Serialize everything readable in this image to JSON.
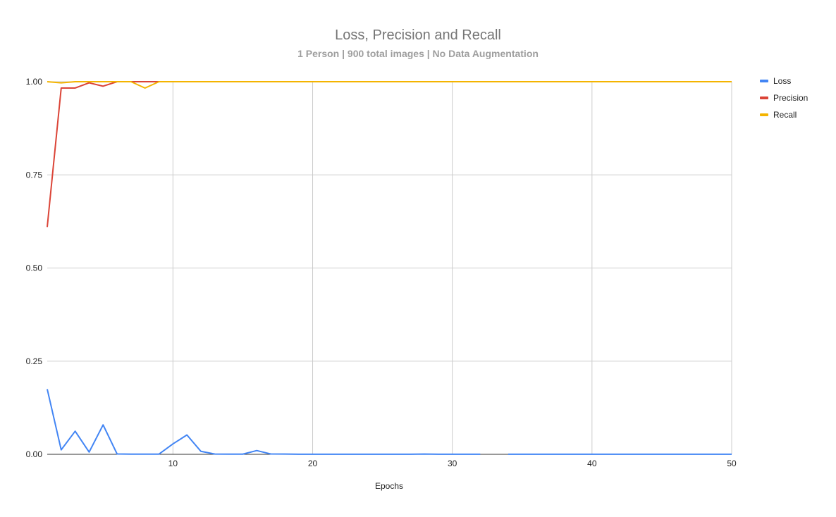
{
  "chart_data": {
    "type": "line",
    "title": "Loss, Precision and Recall",
    "subtitle": "1 Person | 900 total images | No Data Augmentation",
    "xlabel": "Epochs",
    "ylabel": "",
    "xlim": [
      1,
      50
    ],
    "ylim": [
      0,
      1
    ],
    "x_ticks": [
      10,
      20,
      30,
      40,
      50
    ],
    "y_ticks": [
      0,
      0.25,
      0.5,
      0.75,
      1.0
    ],
    "x_tick_labels": [
      "10",
      "20",
      "30",
      "40",
      "50"
    ],
    "y_tick_labels": [
      "0.00",
      "0.25",
      "0.50",
      "0.75",
      "1.00"
    ],
    "grid": true,
    "legend_position": "right",
    "x": [
      1,
      2,
      3,
      4,
      5,
      6,
      7,
      8,
      9,
      10,
      11,
      12,
      13,
      14,
      15,
      16,
      17,
      18,
      19,
      20,
      21,
      22,
      23,
      24,
      25,
      26,
      27,
      28,
      29,
      30,
      31,
      32,
      33,
      34,
      35,
      36,
      37,
      38,
      39,
      40,
      41,
      42,
      43,
      44,
      45,
      46,
      47,
      48,
      49,
      50
    ],
    "series": [
      {
        "name": "Loss",
        "color": "#4285f4",
        "values": [
          0.175,
          0.012,
          0.062,
          0.006,
          0.079,
          0.001,
          0.0005,
          0.0004,
          0.0005,
          0.028,
          0.052,
          0.008,
          0.0007,
          0.0005,
          0.0005,
          0.01,
          0.001,
          0.0008,
          0.0003,
          0.0002,
          0.0002,
          0.0002,
          0.0002,
          0.0002,
          0.0002,
          0.0002,
          0.0002,
          0.0008,
          0.0002,
          0.0002,
          0.0002,
          0.0002,
          null,
          0.0002,
          0.0002,
          0.0002,
          0.0002,
          0.0002,
          0.0002,
          0.0002,
          0.0002,
          0.0002,
          0.0002,
          0.0002,
          0.0002,
          0.0002,
          0.0002,
          0.0002,
          0.0002,
          0.0002
        ]
      },
      {
        "name": "Precision",
        "color": "#db4437",
        "values": [
          0.61,
          0.983,
          0.983,
          0.997,
          0.988,
          1,
          1,
          1,
          1,
          1,
          1,
          1,
          1,
          1,
          1,
          1,
          1,
          1,
          1,
          1,
          1,
          1,
          1,
          1,
          1,
          1,
          1,
          1,
          1,
          1,
          1,
          1,
          1,
          1,
          1,
          1,
          1,
          1,
          1,
          1,
          1,
          1,
          1,
          1,
          1,
          1,
          1,
          1,
          1,
          1
        ]
      },
      {
        "name": "Recall",
        "color": "#f4b400",
        "values": [
          1,
          0.997,
          1,
          1,
          1,
          1,
          1,
          0.983,
          1,
          1,
          1,
          1,
          1,
          1,
          1,
          1,
          1,
          1,
          1,
          1,
          1,
          1,
          1,
          1,
          1,
          1,
          1,
          1,
          1,
          1,
          1,
          1,
          1,
          1,
          1,
          1,
          1,
          1,
          1,
          1,
          1,
          1,
          1,
          1,
          1,
          1,
          1,
          1,
          1,
          1
        ]
      }
    ]
  }
}
